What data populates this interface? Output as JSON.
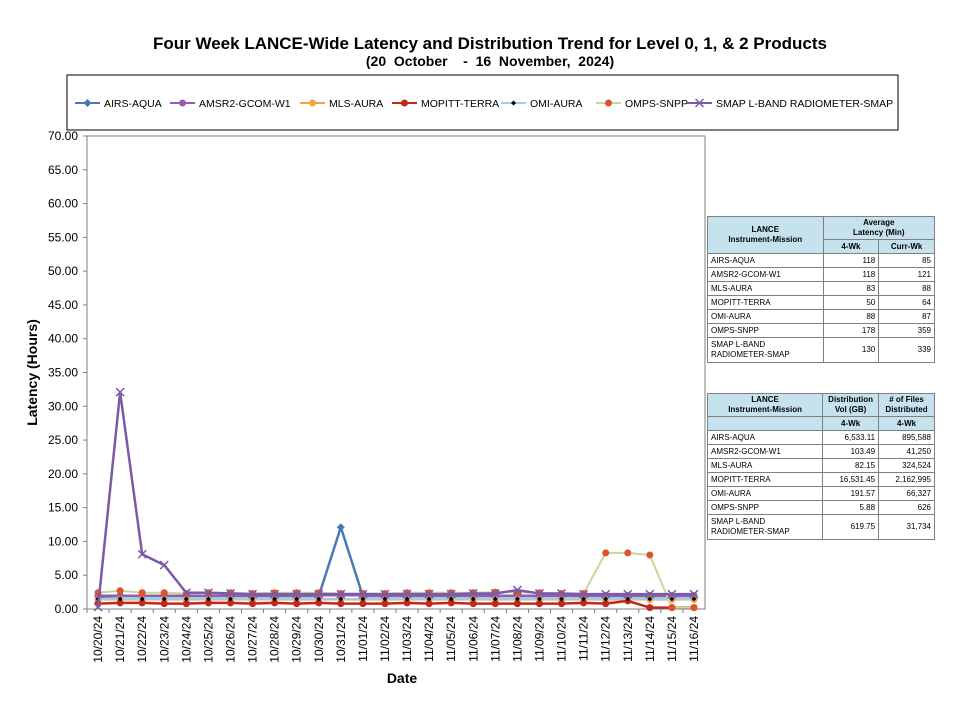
{
  "header": {
    "title": "Four Week LANCE-Wide Latency and Distribution Trend for Level 0, 1, & 2 Products",
    "subtitle": "(20  October    -  16  November,  2024)"
  },
  "chart_data": {
    "type": "line",
    "xlabel": "Date",
    "ylabel": "Latency (Hours)",
    "ylim": [
      0,
      70
    ],
    "yticks": [
      "0.00",
      "5.00",
      "10.00",
      "15.00",
      "20.00",
      "25.00",
      "30.00",
      "35.00",
      "40.00",
      "45.00",
      "50.00",
      "55.00",
      "60.00",
      "65.00",
      "70.00"
    ],
    "legend_position": "top",
    "categories": [
      "10/20/24",
      "10/21/24",
      "10/22/24",
      "10/23/24",
      "10/24/24",
      "10/25/24",
      "10/26/24",
      "10/27/24",
      "10/28/24",
      "10/29/24",
      "10/30/24",
      "10/31/24",
      "11/01/24",
      "11/02/24",
      "11/03/24",
      "11/04/24",
      "11/05/24",
      "11/06/24",
      "11/07/24",
      "11/08/24",
      "11/09/24",
      "11/10/24",
      "11/11/24",
      "11/12/24",
      "11/13/24",
      "11/14/24",
      "11/15/24",
      "11/16/24"
    ],
    "series": [
      {
        "name": "AIRS-AQUA",
        "color": "#4a7ab5",
        "marker": "diamond",
        "values": [
          1.8,
          1.9,
          1.9,
          1.9,
          1.9,
          1.9,
          1.9,
          1.9,
          1.9,
          1.9,
          1.9,
          12.1,
          1.9,
          1.9,
          1.9,
          1.9,
          1.9,
          1.9,
          1.9,
          1.9,
          1.9,
          1.9,
          1.9,
          1.9,
          1.9,
          1.9,
          1.9,
          1.9
        ]
      },
      {
        "name": "AMSR2-GCOM-W1",
        "color": "#9b59b6",
        "marker": "circle",
        "values": [
          2.0,
          2.0,
          2.0,
          2.0,
          2.0,
          2.0,
          2.0,
          2.0,
          2.0,
          2.0,
          2.0,
          2.0,
          2.0,
          2.0,
          2.0,
          2.0,
          2.0,
          2.0,
          2.0,
          2.0,
          2.0,
          2.0,
          2.0,
          2.0,
          2.0,
          2.0,
          2.0,
          2.0
        ]
      },
      {
        "name": "MLS-AURA",
        "color": "#f4a340",
        "marker": "circle",
        "values": [
          1.4,
          1.4,
          1.4,
          1.4,
          1.4,
          1.4,
          1.4,
          1.4,
          1.4,
          1.4,
          1.4,
          1.4,
          1.4,
          1.4,
          1.4,
          1.4,
          1.4,
          1.4,
          1.4,
          1.4,
          1.4,
          1.4,
          1.4,
          1.4,
          1.4,
          1.4,
          1.4,
          1.4
        ]
      },
      {
        "name": "MOPITT-TERRA",
        "color": "#c0281f",
        "marker": "circle",
        "values": [
          0.8,
          0.9,
          0.9,
          0.8,
          0.8,
          0.9,
          0.9,
          0.8,
          0.9,
          0.8,
          0.9,
          0.8,
          0.8,
          0.8,
          0.9,
          0.8,
          0.9,
          0.8,
          0.8,
          0.8,
          0.8,
          0.8,
          0.9,
          0.8,
          1.2,
          0.2,
          0.2,
          0.2
        ]
      },
      {
        "name": "OMI-AURA",
        "color": "#a9c9e8",
        "marker": "small-diamond",
        "values": [
          1.5,
          1.5,
          1.5,
          1.5,
          1.5,
          1.5,
          1.5,
          1.5,
          1.5,
          1.5,
          1.5,
          1.5,
          1.5,
          1.5,
          1.5,
          1.5,
          1.5,
          1.5,
          1.5,
          1.5,
          1.5,
          1.5,
          1.5,
          1.5,
          1.5,
          1.5,
          1.5,
          1.5
        ]
      },
      {
        "name": "OMPS-SNPP",
        "color": "#c5d89a",
        "marker": "circle",
        "values": [
          2.4,
          2.7,
          2.4,
          2.4,
          2.3,
          2.4,
          2.4,
          2.3,
          2.4,
          2.4,
          2.4,
          2.3,
          2.3,
          2.3,
          2.4,
          2.4,
          2.4,
          2.4,
          2.5,
          2.5,
          2.4,
          2.3,
          2.3,
          8.3,
          8.3,
          8.0,
          0.2,
          0.2
        ]
      },
      {
        "name": "SMAP L-BAND RADIOMETER-SMAP",
        "color": "#7b5aa6",
        "marker": "x",
        "values": [
          0.3,
          32.1,
          8.1,
          6.5,
          2.4,
          2.4,
          2.3,
          2.2,
          2.2,
          2.2,
          2.2,
          2.2,
          2.2,
          2.2,
          2.2,
          2.2,
          2.2,
          2.3,
          2.3,
          2.8,
          2.3,
          2.3,
          2.2,
          2.2,
          2.2,
          2.2,
          2.2,
          2.2
        ]
      }
    ]
  },
  "latency_table": {
    "h_col1": "LANCE\nInstrument-Mission",
    "h_col2": "Average\nLatency (Min)",
    "h_sub2": "4-Wk",
    "h_sub3": "Curr-Wk",
    "rows": [
      {
        "name": "AIRS-AQUA",
        "a": "118",
        "b": "85"
      },
      {
        "name": "AMSR2-GCOM-W1",
        "a": "118",
        "b": "121"
      },
      {
        "name": "MLS-AURA",
        "a": "83",
        "b": "88"
      },
      {
        "name": "MOPITT-TERRA",
        "a": "50",
        "b": "64"
      },
      {
        "name": "OMI-AURA",
        "a": "88",
        "b": "87"
      },
      {
        "name": "OMPS-SNPP",
        "a": "178",
        "b": "359"
      },
      {
        "name": "SMAP L-BAND RADIOMETER-SMAP",
        "a": "130",
        "b": "339"
      }
    ]
  },
  "distribution_table": {
    "h_col1": "LANCE\nInstrument-Mission",
    "h_col2": "Distribution\nVol (GB)",
    "h_col3": "# of Files\nDistributed",
    "h_sub2": "4-Wk",
    "h_sub3": "4-Wk",
    "rows": [
      {
        "name": "AIRS-AQUA",
        "a": "6,533.11",
        "b": "895,588"
      },
      {
        "name": "AMSR2-GCOM-W1",
        "a": "103.49",
        "b": "41,250"
      },
      {
        "name": "MLS-AURA",
        "a": "82.15",
        "b": "324,524"
      },
      {
        "name": "MOPITT-TERRA",
        "a": "16,531.45",
        "b": "2,162,995"
      },
      {
        "name": "OMI-AURA",
        "a": "191.57",
        "b": "66,327"
      },
      {
        "name": "OMPS-SNPP",
        "a": "5.88",
        "b": "626"
      },
      {
        "name": "SMAP L-BAND RADIOMETER-SMAP",
        "a": "619.75",
        "b": "31,734"
      }
    ]
  }
}
